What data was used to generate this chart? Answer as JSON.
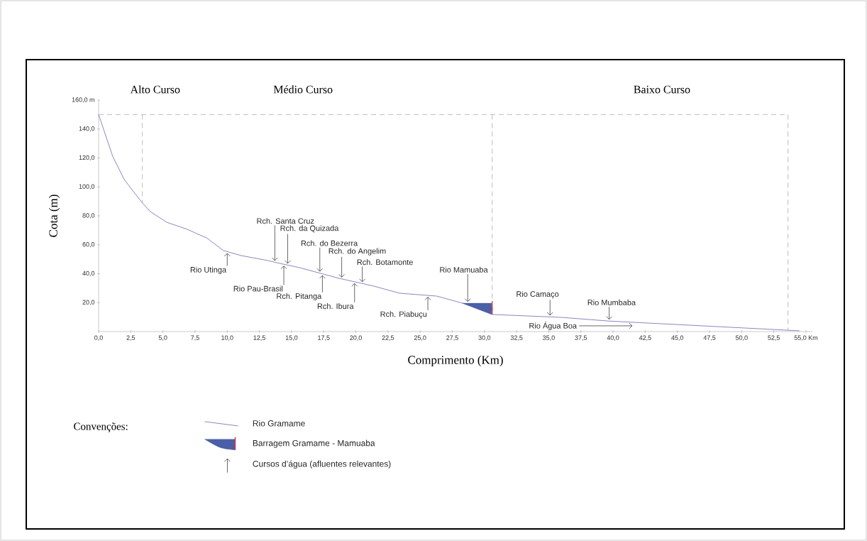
{
  "chart_data": {
    "type": "line",
    "xlabel": "Comprimento (Km)",
    "ylabel": "Cota (m)",
    "legend": "bottom",
    "legend_title": "Convenções:",
    "marker": "none",
    "xlim": [
      0,
      55.5
    ],
    "ylim": [
      0,
      160
    ],
    "xticks": [
      {
        "value": 0,
        "label": "0,0"
      },
      {
        "value": 2.5,
        "label": "2,5"
      },
      {
        "value": 5,
        "label": "5,0"
      },
      {
        "value": 7.5,
        "label": "7,5"
      },
      {
        "value": 10,
        "label": "10,0"
      },
      {
        "value": 12.5,
        "label": "12,5"
      },
      {
        "value": 15,
        "label": "15,0"
      },
      {
        "value": 17.5,
        "label": "17,5"
      },
      {
        "value": 20,
        "label": "20,0"
      },
      {
        "value": 22.5,
        "label": "22,5"
      },
      {
        "value": 25,
        "label": "25,0"
      },
      {
        "value": 27.5,
        "label": "27,5"
      },
      {
        "value": 30,
        "label": "30,0"
      },
      {
        "value": 32.5,
        "label": "32,5"
      },
      {
        "value": 35,
        "label": "35,0"
      },
      {
        "value": 37.5,
        "label": "37,5"
      },
      {
        "value": 40,
        "label": "40,0"
      },
      {
        "value": 42.5,
        "label": "42,5"
      },
      {
        "value": 45,
        "label": "45,0"
      },
      {
        "value": 47.5,
        "label": "47,5"
      },
      {
        "value": 50,
        "label": "50,0"
      },
      {
        "value": 52.5,
        "label": "52,5"
      },
      {
        "value": 55,
        "label": "55,0 Km"
      }
    ],
    "yticks": [
      {
        "value": 20,
        "label": "20,0"
      },
      {
        "value": 40,
        "label": "40,0"
      },
      {
        "value": 60,
        "label": "60,0"
      },
      {
        "value": 80,
        "label": "80,0"
      },
      {
        "value": 100,
        "label": "100,0"
      },
      {
        "value": 120,
        "label": "120,0"
      },
      {
        "value": 140,
        "label": "140,0"
      },
      {
        "value": 160,
        "label": "160,0 m"
      }
    ],
    "series": [
      {
        "name": "Rio Gramame",
        "color": "#6a6ab0",
        "x": [
          0,
          1.1,
          2.0,
          3.3,
          4.0,
          5.3,
          6.8,
          8.4,
          9.7,
          11.1,
          13.2,
          13.9,
          15.7,
          18.6,
          21.4,
          23.4,
          26.3,
          28.3,
          30.6,
          36,
          39.6,
          54.5
        ],
        "values": [
          150,
          121,
          105,
          90,
          83,
          75.5,
          71,
          64.7,
          56,
          52.5,
          49,
          47.5,
          44,
          37,
          31.4,
          26.5,
          24.5,
          19.6,
          11.8,
          9.8,
          7.3,
          0.5
        ]
      },
      {
        "name": "Barragem Gramame - Mamuaba",
        "type": "area",
        "color": "#4a5fa8",
        "x": [
          28.3,
          30.6
        ],
        "values": [
          19.6,
          19.6
        ]
      },
      {
        "color": "#e03030",
        "x": [
          30.6,
          30.6
        ],
        "values": [
          11.8,
          21
        ]
      }
    ],
    "ref_lines": [
      {
        "axis": "y",
        "value": 150,
        "color": "#a0a0a0",
        "line_style": "dashed"
      },
      {
        "axis": "x",
        "value": 3.4,
        "color": "#a0a0a0",
        "line_style": "dashed"
      },
      {
        "axis": "x",
        "value": 30.6,
        "color": "#a0a0a0",
        "line_style": "dashed"
      },
      {
        "axis": "x",
        "value": 53.6,
        "color": "#a0a0a0",
        "line_style": "dashed"
      }
    ],
    "annotations": [
      "Alto Curso",
      "Médio Curso",
      "Baixo Curso",
      {
        "text": "Rio Utinga",
        "x": 10.0,
        "y": 55.2
      },
      {
        "text": "Rio Pau-Brasil",
        "x": 14.4,
        "y": 46.5
      },
      {
        "text": "Rch. Pitanga",
        "x": 17.4,
        "y": 39.9
      },
      {
        "text": "Rch. Ibura",
        "x": 19.9,
        "y": 34.4
      },
      {
        "text": "Rch. Piabuçu",
        "x": 25.6,
        "y": 25
      },
      {
        "text": "Rch. Santa Cruz",
        "x": 13.7,
        "y": 47.9
      },
      {
        "text": "Rch. da Quizada",
        "x": 14.7,
        "y": 45.9
      },
      {
        "text": "Rch. do Bezerra",
        "x": 17.2,
        "y": 40.4
      },
      {
        "text": "Rch. do Angelim",
        "x": 18.9,
        "y": 36.4
      },
      {
        "text": "Rch. Botamonte",
        "x": 20.5,
        "y": 33.2
      },
      {
        "text": "Rio Mamuaba",
        "x": 28.7,
        "y": 19.6
      },
      {
        "text": "Rio Camaço",
        "x": 35.1,
        "y": 10.1
      },
      {
        "text": "Rio Mumbaba",
        "x": 39.7,
        "y": 7.3
      },
      {
        "text": "Rio Água Boa",
        "x": 41.5,
        "y": 6.4
      },
      "Cursos d’água (afluentes relevantes)"
    ]
  }
}
